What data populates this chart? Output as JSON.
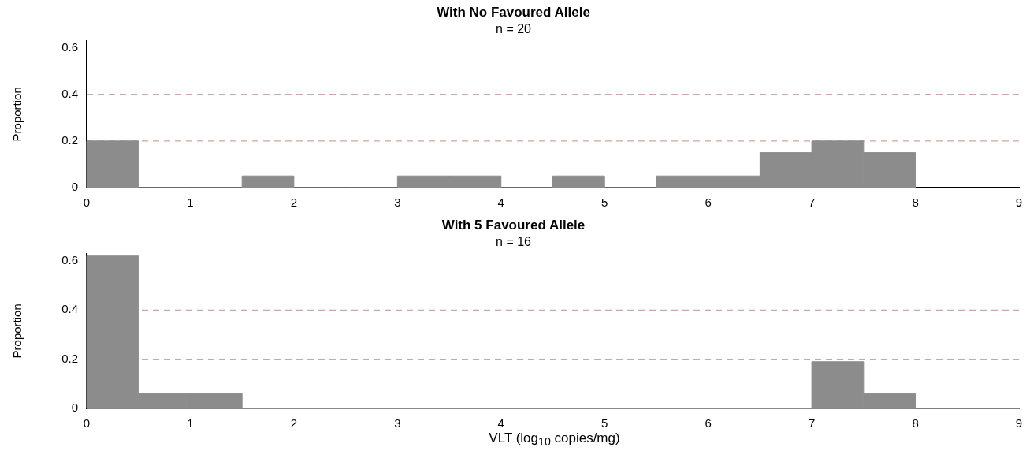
{
  "chart_data": [
    {
      "type": "histogram",
      "title": "With No Favoured Allele",
      "subtitle": "n = 20",
      "ylabel": "Proportion",
      "bins": [
        0,
        0.5,
        1,
        1.5,
        2,
        2.5,
        3,
        3.5,
        4,
        4.5,
        5,
        5.5,
        6,
        6.5,
        7,
        7.5,
        8
      ],
      "values": [
        0.2,
        0,
        0,
        0.05,
        0,
        0,
        0.05,
        0.05,
        0,
        0.05,
        0,
        0.05,
        0.05,
        0.15,
        0.2,
        0.15
      ],
      "color": "#8c8c8c",
      "xlim": [
        0,
        9
      ],
      "xticks": [
        0,
        1,
        2,
        3,
        4,
        5,
        6,
        7,
        8,
        9
      ],
      "ylim": [
        0,
        0.63
      ],
      "yticks": [
        0,
        0.2,
        0.4,
        0.6
      ],
      "ref_lines": [
        {
          "axis": "y",
          "value": 0.2,
          "color": "#c9a9a0",
          "line_style": "dashed"
        },
        {
          "axis": "y",
          "value": 0.4,
          "color": "#c9a9a0",
          "line_style": "dashed"
        }
      ],
      "grid": false,
      "legend": false
    },
    {
      "type": "histogram",
      "title": "With 5 Favoured Allele",
      "subtitle": "n = 16",
      "ylabel": "Proportion",
      "xlabel": "VLT (log$_{10}$ copies/mg)",
      "bins": [
        0,
        0.5,
        1,
        1.5,
        2,
        2.5,
        3,
        3.5,
        4,
        4.5,
        5,
        5.5,
        6,
        6.5,
        7,
        7.5,
        8
      ],
      "values": [
        0.62,
        0.06,
        0.06,
        0,
        0,
        0,
        0,
        0,
        0,
        0,
        0,
        0,
        0,
        0,
        0.19,
        0.06
      ],
      "color": "#8c8c8c",
      "xlim": [
        0,
        9
      ],
      "xticks": [
        0,
        1,
        2,
        3,
        4,
        5,
        6,
        7,
        8,
        9
      ],
      "ylim": [
        0,
        0.63
      ],
      "yticks": [
        0,
        0.2,
        0.4,
        0.6
      ],
      "ref_lines": [
        {
          "axis": "y",
          "value": 0.2,
          "color": "#c9a9a0",
          "line_style": "dashed"
        },
        {
          "axis": "y",
          "value": 0.4,
          "color": "#c9a9a0",
          "line_style": "dashed"
        }
      ],
      "grid": false,
      "legend": false
    }
  ]
}
